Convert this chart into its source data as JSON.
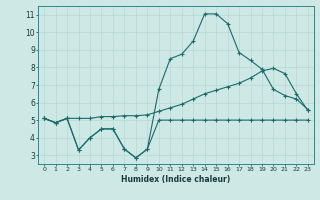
{
  "xlabel": "Humidex (Indice chaleur)",
  "xlim": [
    -0.5,
    23.5
  ],
  "ylim": [
    2.5,
    11.5
  ],
  "yticks": [
    3,
    4,
    5,
    6,
    7,
    8,
    9,
    10,
    11
  ],
  "xticks": [
    0,
    1,
    2,
    3,
    4,
    5,
    6,
    7,
    8,
    9,
    10,
    11,
    12,
    13,
    14,
    15,
    16,
    17,
    18,
    19,
    20,
    21,
    22,
    23
  ],
  "bg_color": "#cde8e5",
  "line_color": "#1a6b6b",
  "grid_color": "#b8d8d4",
  "line1_y": [
    5.1,
    4.85,
    5.1,
    3.3,
    4.0,
    4.5,
    4.5,
    3.35,
    2.85,
    3.35,
    5.0,
    5.0,
    5.0,
    5.0,
    5.0,
    5.0,
    5.0,
    5.0,
    5.0,
    5.0,
    5.0,
    5.0,
    5.0,
    5.0
  ],
  "line2_y": [
    5.1,
    4.85,
    5.1,
    3.3,
    4.0,
    4.5,
    4.5,
    3.35,
    2.85,
    3.35,
    6.75,
    8.5,
    8.75,
    9.5,
    11.05,
    11.05,
    10.5,
    8.85,
    8.4,
    7.9,
    6.75,
    6.4,
    6.2,
    5.6
  ],
  "line3_y": [
    5.1,
    4.85,
    5.1,
    5.1,
    5.1,
    5.2,
    5.2,
    5.25,
    5.25,
    5.3,
    5.5,
    5.7,
    5.9,
    6.2,
    6.5,
    6.7,
    6.9,
    7.1,
    7.4,
    7.8,
    7.95,
    7.65,
    6.5,
    5.55
  ]
}
